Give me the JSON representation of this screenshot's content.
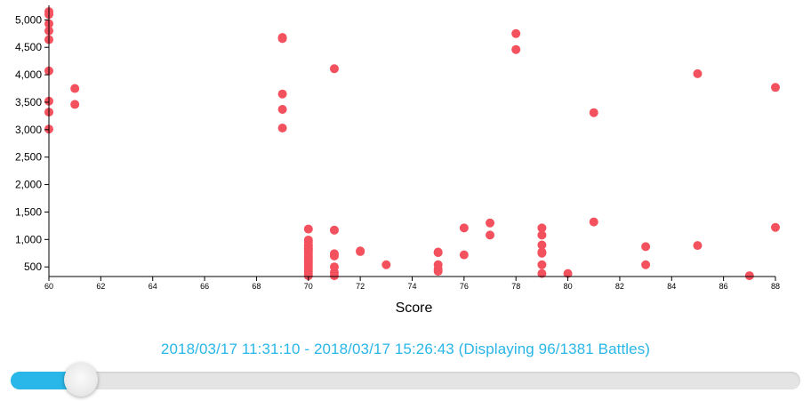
{
  "colors": {
    "point": "#f4515e",
    "axis": "#000000",
    "accent": "#29b6e8",
    "track": "#e4e4e4"
  },
  "chart_data": {
    "type": "scatter",
    "title": "",
    "xlabel": "Score",
    "ylabel": "",
    "xlim": [
      60,
      88
    ],
    "ylim": [
      325,
      5200
    ],
    "x_ticks": [
      60,
      62,
      64,
      66,
      68,
      70,
      72,
      74,
      76,
      78,
      80,
      82,
      84,
      86,
      88
    ],
    "y_ticks": [
      500,
      1000,
      1500,
      2000,
      2500,
      3000,
      3500,
      4000,
      4500,
      5000
    ],
    "grid": false,
    "legend": "none",
    "series": [
      {
        "points": [
          [
            60,
            5150
          ],
          [
            60,
            5100
          ],
          [
            60,
            4930
          ],
          [
            60,
            4800
          ],
          [
            60,
            4640
          ],
          [
            60,
            4070
          ],
          [
            60,
            3520
          ],
          [
            60,
            3320
          ],
          [
            60,
            3010
          ],
          [
            61,
            3750
          ],
          [
            61,
            3460
          ],
          [
            69,
            4680
          ],
          [
            69,
            4660
          ],
          [
            69,
            3650
          ],
          [
            69,
            3370
          ],
          [
            69,
            3030
          ],
          [
            70,
            1190
          ],
          [
            70,
            990
          ],
          [
            70,
            950
          ],
          [
            70,
            900
          ],
          [
            70,
            870
          ],
          [
            70,
            840
          ],
          [
            70,
            820
          ],
          [
            70,
            790
          ],
          [
            70,
            750
          ],
          [
            70,
            700
          ],
          [
            70,
            660
          ],
          [
            70,
            620
          ],
          [
            70,
            580
          ],
          [
            70,
            540
          ],
          [
            70,
            500
          ],
          [
            70,
            460
          ],
          [
            70,
            420
          ],
          [
            70,
            380
          ],
          [
            70,
            340
          ],
          [
            71,
            4110
          ],
          [
            71,
            1170
          ],
          [
            71,
            740
          ],
          [
            71,
            700
          ],
          [
            71,
            500
          ],
          [
            71,
            400
          ],
          [
            71,
            340
          ],
          [
            72,
            790
          ],
          [
            72,
            780
          ],
          [
            73,
            540
          ],
          [
            75,
            770
          ],
          [
            75,
            760
          ],
          [
            75,
            540
          ],
          [
            75,
            460
          ],
          [
            75,
            420
          ],
          [
            76,
            1210
          ],
          [
            76,
            720
          ],
          [
            77,
            1300
          ],
          [
            77,
            1080
          ],
          [
            78,
            4750
          ],
          [
            78,
            4460
          ],
          [
            79,
            1210
          ],
          [
            79,
            1080
          ],
          [
            79,
            900
          ],
          [
            79,
            770
          ],
          [
            79,
            750
          ],
          [
            79,
            540
          ],
          [
            79,
            380
          ],
          [
            80,
            380
          ],
          [
            81,
            3310
          ],
          [
            81,
            1320
          ],
          [
            83,
            870
          ],
          [
            83,
            540
          ],
          [
            85,
            4020
          ],
          [
            85,
            890
          ],
          [
            87,
            340
          ],
          [
            88,
            3770
          ],
          [
            88,
            1220
          ]
        ]
      }
    ]
  },
  "caption": {
    "text": "2018/03/17 11:31:10 - 2018/03/17 15:26:43 (Displaying 96/1381 Battles)"
  },
  "slider": {
    "value_fraction": 0.089
  }
}
